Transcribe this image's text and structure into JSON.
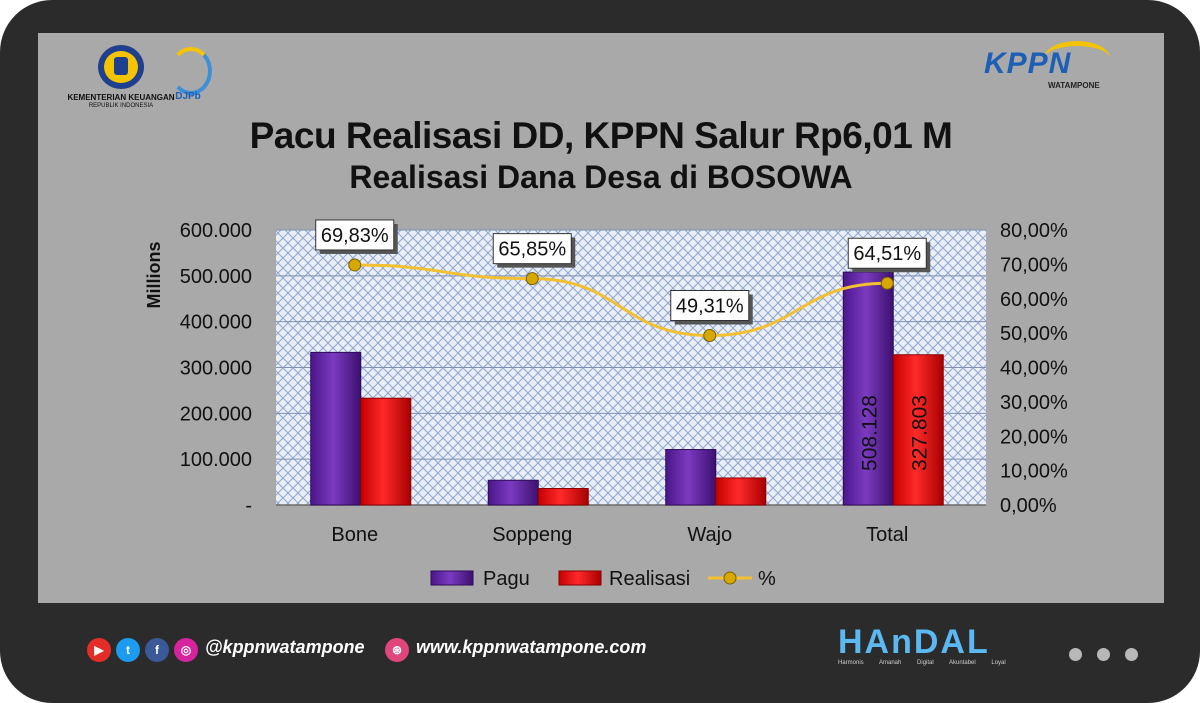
{
  "header": {
    "kemenkeu_line1": "KEMENTERIAN KEUANGAN",
    "kemenkeu_line2": "REPUBLIK INDONESIA",
    "djpb": "DJPb",
    "kppn": "KPPN",
    "kppn_sub": "WATAMPONE"
  },
  "title": "Pacu Realisasi DD, KPPN Salur Rp6,01 M",
  "chart_data": {
    "type": "bar",
    "title": "Realisasi Dana Desa di BOSOWA",
    "categories": [
      "Bone",
      "Soppeng",
      "Wajo",
      "Total"
    ],
    "series": [
      {
        "name": "Pagu",
        "type": "bar",
        "axis": "left",
        "values": [
          333000,
          54000,
          121000,
          508128
        ]
      },
      {
        "name": "Realisasi",
        "type": "bar",
        "axis": "left",
        "values": [
          233000,
          36000,
          59000,
          327803
        ]
      },
      {
        "name": "%",
        "type": "line",
        "axis": "right",
        "values": [
          69.83,
          65.85,
          49.31,
          64.51
        ]
      }
    ],
    "percent_labels": [
      "69,83%",
      "65,85%",
      "49,31%",
      "64,51%"
    ],
    "bar_labels_total": {
      "Pagu": "508.128",
      "Realisasi": "327.803"
    },
    "ylabel": "Millions",
    "ylim": [
      0,
      600000
    ],
    "y_ticks": [
      "-",
      "100.000",
      "200.000",
      "300.000",
      "400.000",
      "500.000",
      "600.000"
    ],
    "y2lim": [
      0,
      80
    ],
    "y2_ticks": [
      "0,00%",
      "10,00%",
      "20,00%",
      "30,00%",
      "40,00%",
      "50,00%",
      "60,00%",
      "70,00%",
      "80,00%"
    ],
    "grid": true,
    "legend_position": "bottom",
    "colors": {
      "Pagu": "#6a2aa8",
      "Realisasi": "#ee1111",
      "%": "#f2c030"
    }
  },
  "footer": {
    "handle": "@kppnwatampone",
    "url": "www.kppnwatampone.com",
    "handal": "HAnDAL",
    "handal_sub": "Harmonis Amanah Digital Akuntabel Loyal"
  }
}
